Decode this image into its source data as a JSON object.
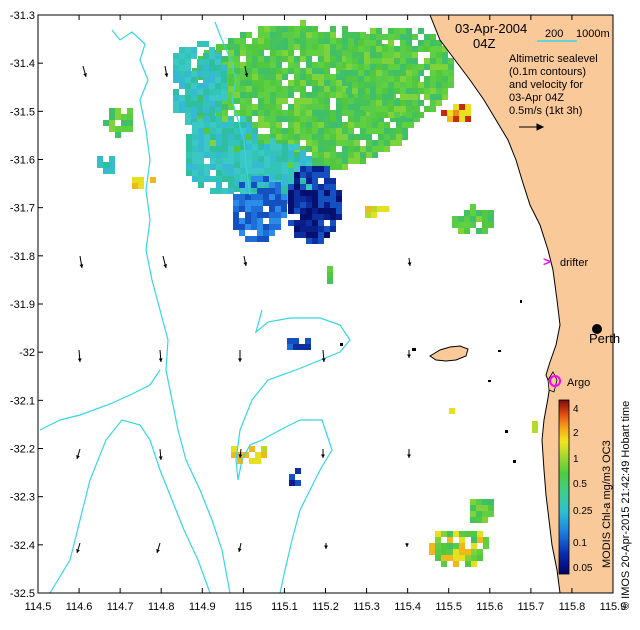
{
  "date_label": "03-Apr-2004",
  "time_label": "04Z",
  "scale": {
    "value": "200",
    "unit": "1000m"
  },
  "alt_text": [
    "Altimetric sealevel",
    "(0.1m contours)",
    "and velocity for",
    "03-Apr 04Z"
  ],
  "velocity_ref": "0.5m/s (1kt 3h)",
  "drifter_label": "drifter",
  "perth_label": "Perth",
  "argo_label": "Argo",
  "colorbar": {
    "labels": [
      "4",
      "2",
      "1",
      "0.5",
      "0.25",
      "0.1",
      "0.05"
    ],
    "title": "MODIS Chl-a mg/m3 OC3"
  },
  "credit": "© IMOS 20-Apr-2015 21:42:49 Hobart time",
  "x_ticks": [
    "114.5",
    "114.6",
    "114.7",
    "114.8",
    "114.9",
    "115",
    "115.1",
    "115.2",
    "115.3",
    "115.4",
    "115.5",
    "115.6",
    "115.7",
    "115.8",
    "115.9"
  ],
  "y_ticks": [
    "-31.3",
    "-31.4",
    "-31.5",
    "-31.6",
    "-31.7",
    "-31.8",
    "-31.9",
    "-32",
    "-32.1",
    "-32.2",
    "-32.3",
    "-32.4",
    "-32.5"
  ],
  "colors": {
    "land": "#f9c99a",
    "contour": "#36d6e6",
    "drifter": "#ff00ff",
    "argo": "#ff00ff"
  },
  "extent": {
    "lon": [
      114.5,
      115.9
    ],
    "lat": [
      -32.5,
      -31.3
    ]
  },
  "markers": {
    "drifter": {
      "lon": 115.75,
      "lat": -31.81
    },
    "perth": {
      "lon": 115.86,
      "lat": -31.95
    },
    "argo": {
      "lon": 115.75,
      "lat": -32.08
    }
  }
}
